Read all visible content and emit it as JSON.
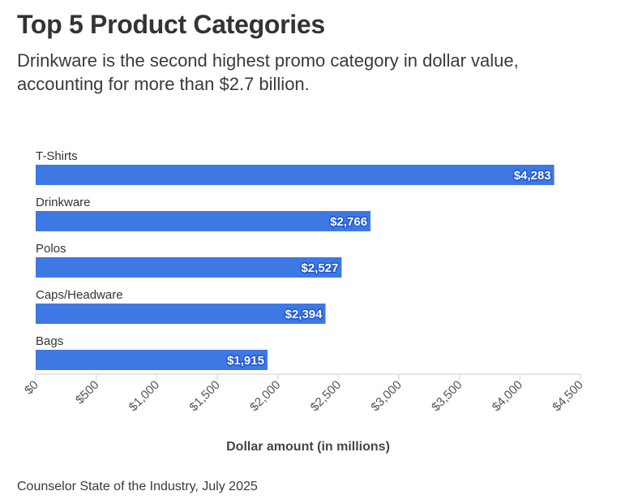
{
  "chart_data": {
    "type": "bar",
    "orientation": "horizontal",
    "title": "Top 5 Product Categories",
    "subtitle": "Drinkware is the second highest promo category in dollar value, accounting for more than $2.7 billion.",
    "categories": [
      "T-Shirts",
      "Drinkware",
      "Polos",
      "Caps/Headware",
      "Bags"
    ],
    "values": [
      4283,
      2766,
      2527,
      2394,
      1915
    ],
    "value_labels": [
      "$4,283",
      "$2,766",
      "$2,527",
      "$2,394",
      "$1,915"
    ],
    "xlabel": "Dollar amount (in millions)",
    "ylabel": "",
    "xlim": [
      0,
      4500
    ],
    "xticks": [
      0,
      500,
      1000,
      1500,
      2000,
      2500,
      3000,
      3500,
      4000,
      4500
    ],
    "xtick_labels": [
      "$0",
      "$500",
      "$1,000",
      "$1,500",
      "$2,000",
      "$2,500",
      "$3,000",
      "$3,500",
      "$4,000",
      "$4,500"
    ],
    "grid": false,
    "legend": "none",
    "bar_color": "#3e78e3",
    "source": "Counselor State of the Industry, July 2025"
  }
}
